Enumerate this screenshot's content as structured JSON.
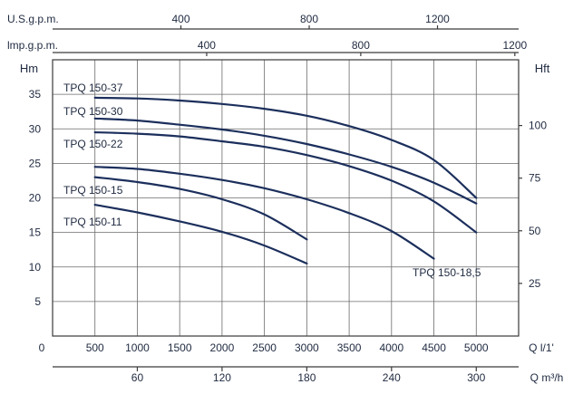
{
  "chart_data": {
    "type": "line",
    "title": "",
    "axes": {
      "x_bottom": {
        "label": "Q l/1'",
        "ticks": [
          0,
          500,
          1000,
          1500,
          2000,
          2500,
          3000,
          3500,
          4000,
          4500,
          5000
        ],
        "range": [
          0,
          5500
        ]
      },
      "x_bottom2": {
        "label": "Q m³/h",
        "ticks": [
          60,
          120,
          180,
          240,
          300
        ],
        "per_lpm": 0.06
      },
      "x_top": {
        "label": "U.S.g.p.m.",
        "ticks": [
          400,
          800,
          1200
        ],
        "per_lpm": 0.26417
      },
      "x_top2": {
        "label": "lmp.g.p.m.",
        "ticks": [
          400,
          800,
          1200
        ],
        "per_lpm": 0.21997
      },
      "y_left": {
        "label": "Hm",
        "ticks": [
          5,
          10,
          15,
          20,
          25,
          30,
          35
        ],
        "range": [
          0,
          40
        ]
      },
      "y_right": {
        "label": "Hft",
        "ticks": [
          25,
          50,
          75,
          100
        ],
        "per_m": 3.2808
      }
    },
    "grid": true,
    "series": [
      {
        "name": "TPQ 150-37",
        "x": [
          500,
          1000,
          1500,
          2000,
          2500,
          3000,
          3500,
          4000,
          4500,
          5000
        ],
        "y": [
          34.5,
          34.4,
          34.1,
          33.6,
          32.9,
          31.9,
          30.4,
          28.4,
          25.5,
          20.0
        ]
      },
      {
        "name": "TPQ 150-30",
        "x": [
          500,
          1000,
          1500,
          2000,
          2500,
          3000,
          3500,
          4000,
          4500,
          5000
        ],
        "y": [
          31.5,
          31.2,
          30.6,
          29.9,
          29.0,
          27.8,
          26.3,
          24.5,
          22.2,
          19.2
        ]
      },
      {
        "name": "TPQ 150-22",
        "x": [
          500,
          1000,
          1500,
          2000,
          2500,
          3000,
          3500,
          4000,
          4500,
          5000
        ],
        "y": [
          29.5,
          29.3,
          28.9,
          28.2,
          27.4,
          26.2,
          24.6,
          22.5,
          19.5,
          15.0
        ]
      },
      {
        "name": "TPQ 150-18,5",
        "x": [
          500,
          1000,
          1500,
          2000,
          2500,
          3000,
          3500,
          4000,
          4500
        ],
        "y": [
          24.5,
          24.2,
          23.5,
          22.6,
          21.4,
          19.8,
          17.8,
          15.2,
          11.2
        ]
      },
      {
        "name": "TPQ 150-15",
        "x": [
          500,
          1000,
          1500,
          2000,
          2500,
          3000
        ],
        "y": [
          23.0,
          22.3,
          21.3,
          19.8,
          17.6,
          14.0
        ]
      },
      {
        "name": "TPQ 150-11",
        "x": [
          500,
          1000,
          1500,
          2000,
          2500,
          3000
        ],
        "y": [
          19.0,
          17.9,
          16.6,
          15.1,
          13.1,
          10.5
        ]
      }
    ]
  }
}
